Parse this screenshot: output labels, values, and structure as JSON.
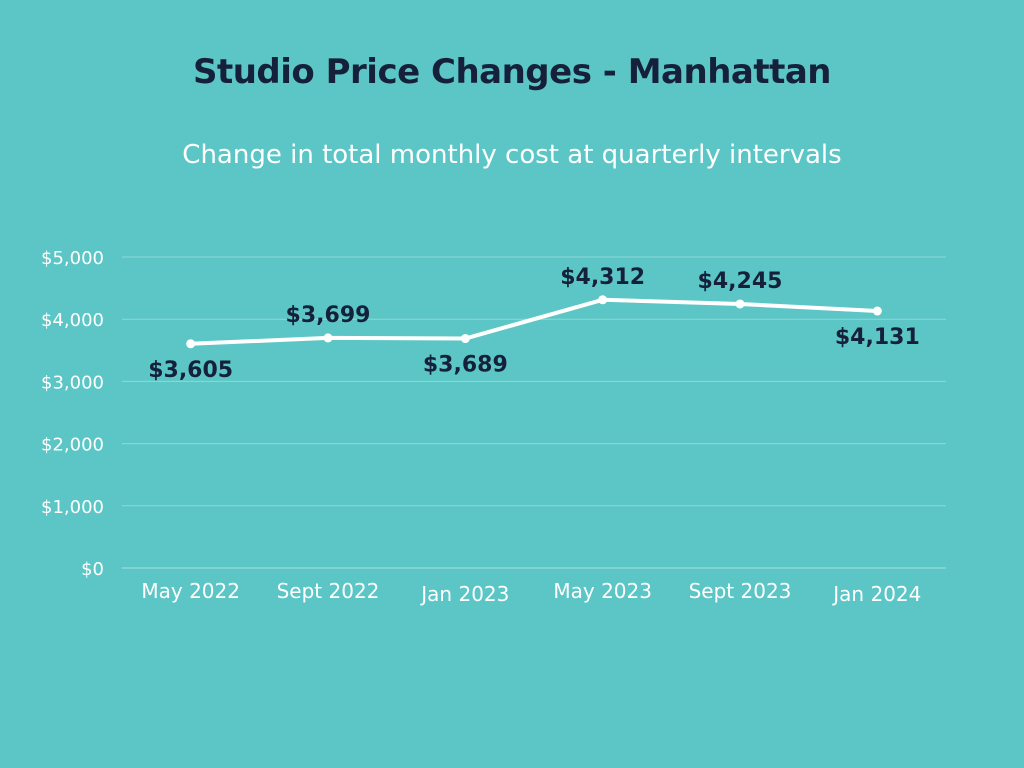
{
  "chart_data": {
    "type": "line",
    "title": "Studio Price Changes - Manhattan",
    "subtitle": "Change in total monthly cost at quarterly intervals",
    "categories": [
      "May 2022",
      "Sept 2022",
      "Jan 2023",
      "May 2023",
      "Sept 2023",
      "Jan 2024"
    ],
    "series": [
      {
        "values": [
          3605,
          3699,
          3689,
          4312,
          4245,
          4131
        ]
      }
    ],
    "data_labels": [
      "$3,605",
      "$3,699",
      "$3,689",
      "$4,312",
      "$4,245",
      "$4,131"
    ],
    "y_ticks": [
      0,
      1000,
      2000,
      3000,
      4000,
      5000
    ],
    "y_tick_labels": [
      "$0",
      "$1,000",
      "$2,000",
      "$3,000",
      "$4,000",
      "$5,000"
    ],
    "ylim": [
      0,
      5000
    ],
    "grid": true,
    "xlabel": "",
    "ylabel": "",
    "colors": {
      "background": "#5cc6c6",
      "line": "#ffffff",
      "title": "#15213a",
      "grid": "#8fd8d8"
    }
  }
}
